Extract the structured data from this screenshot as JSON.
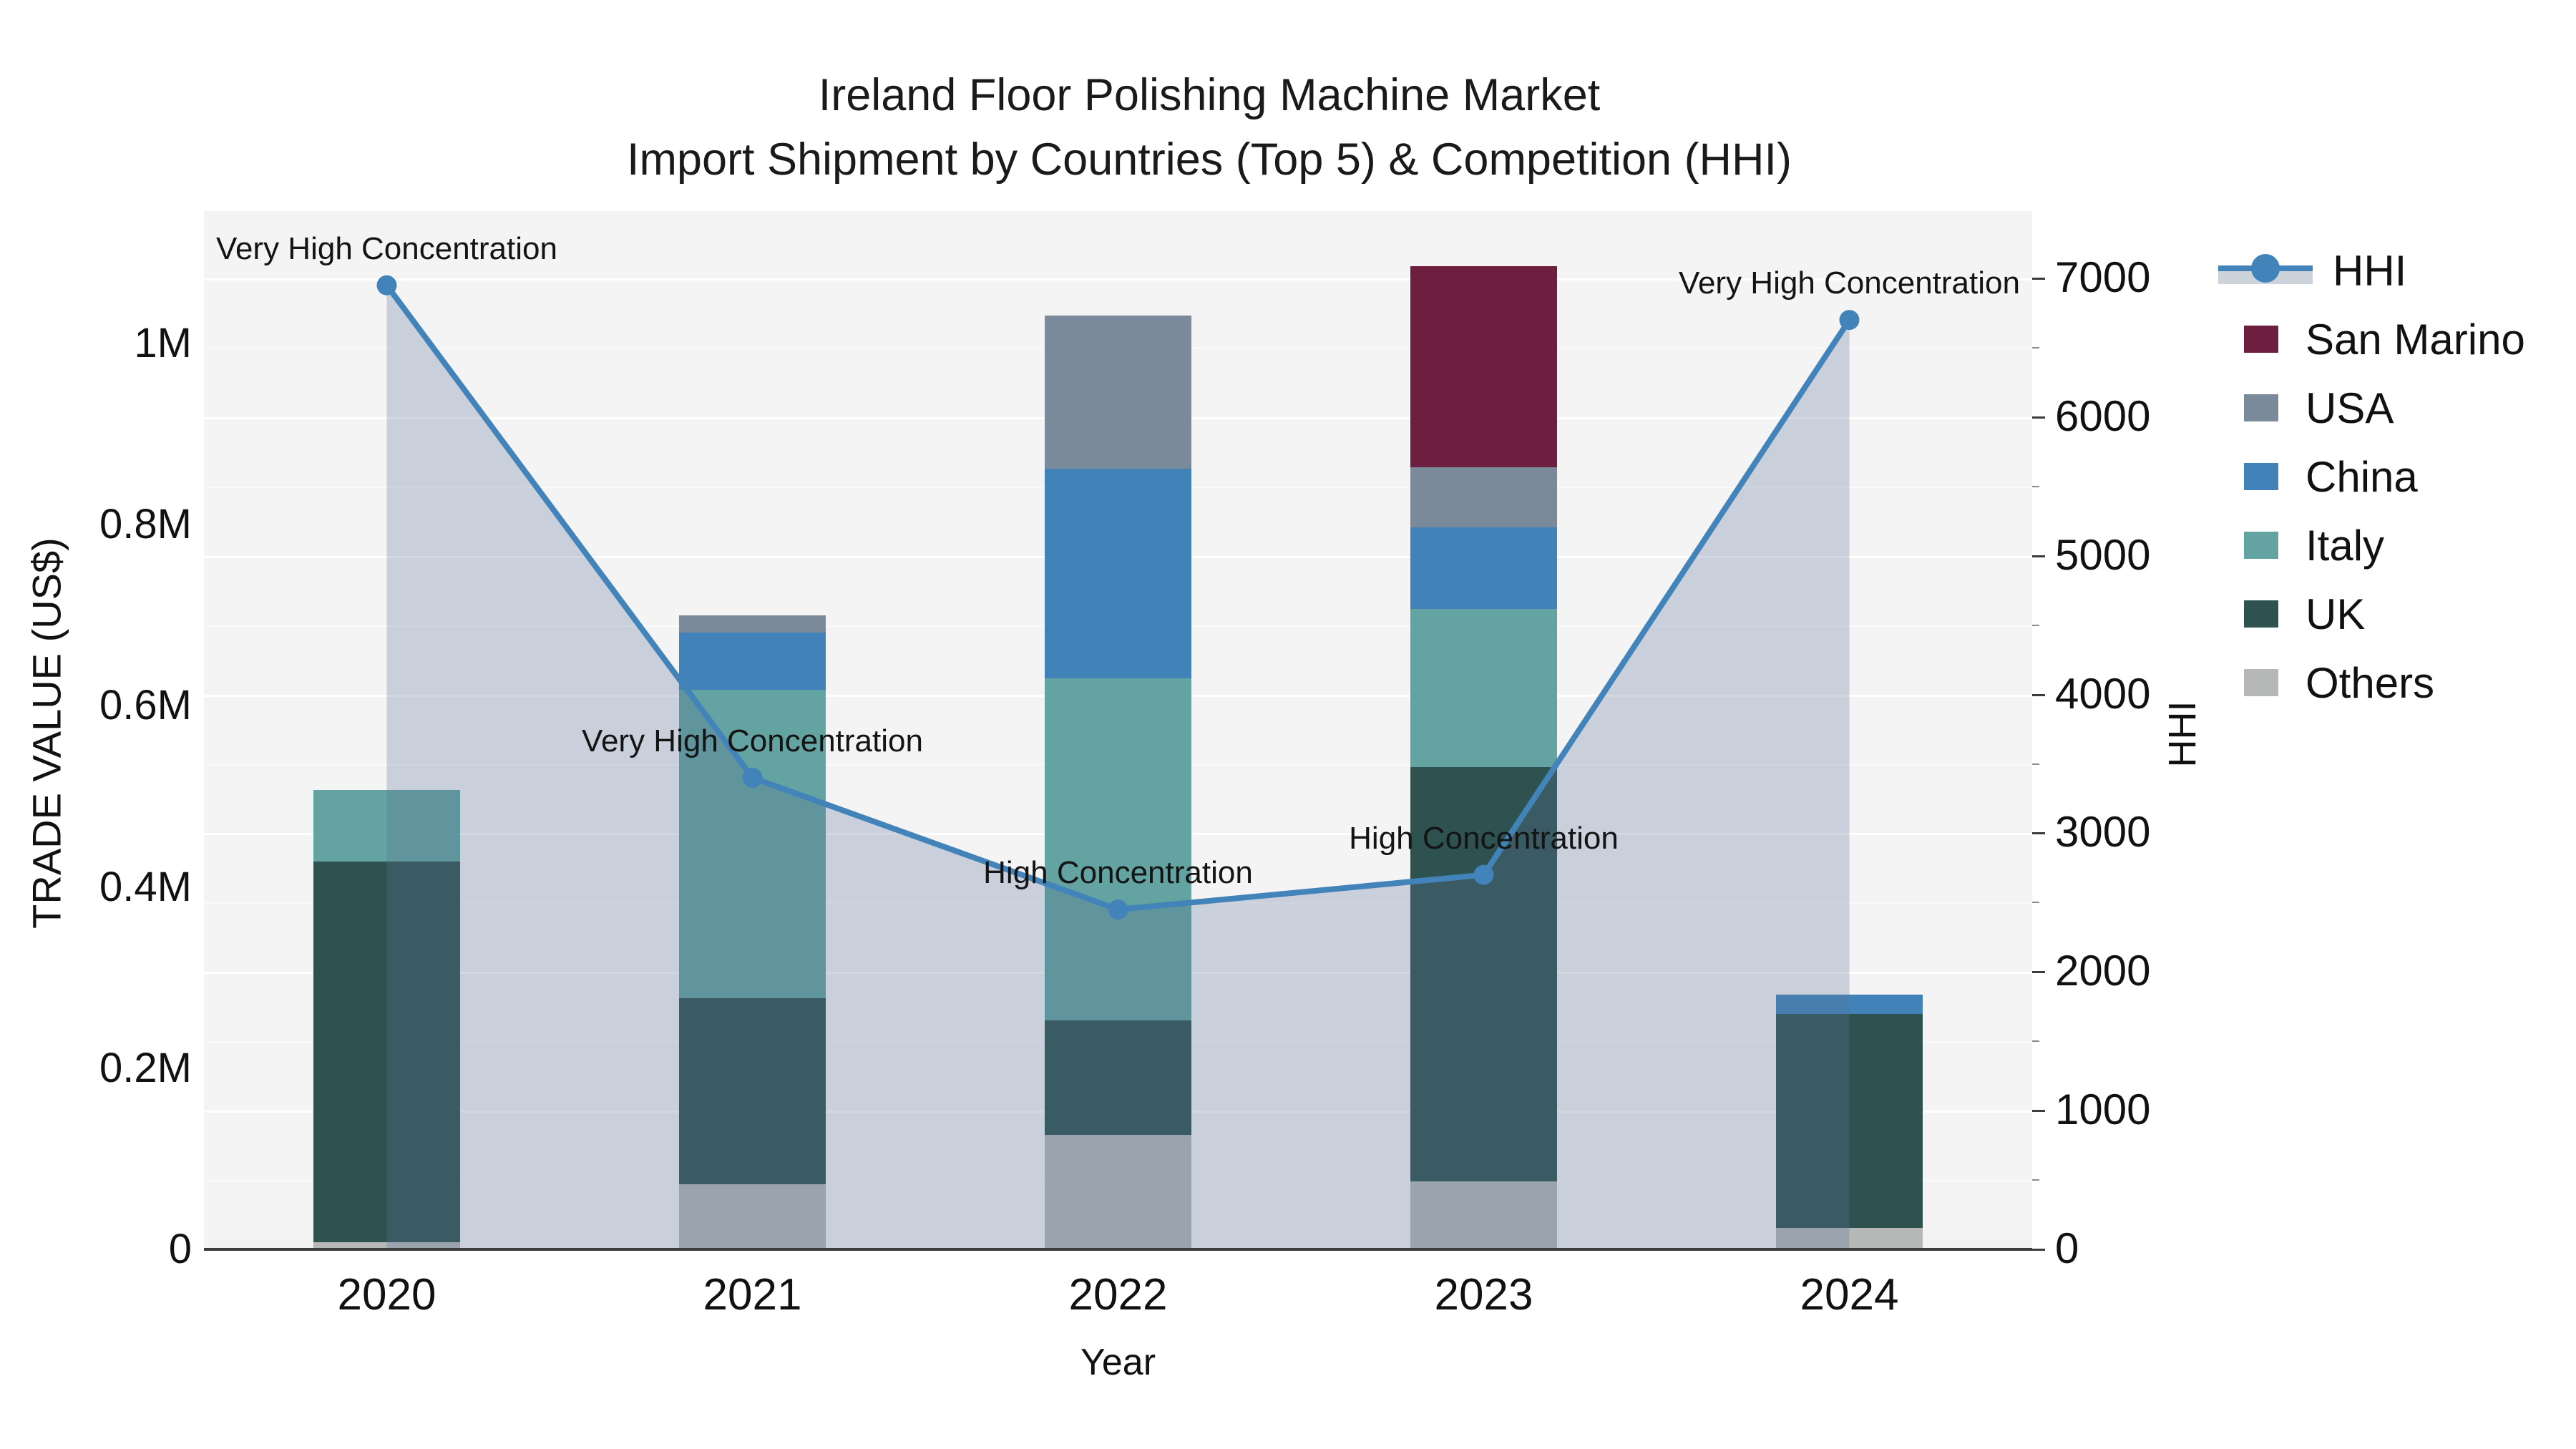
{
  "title": {
    "line1": "Ireland Floor Polishing Machine Market",
    "line2": "Import Shipment by Countries (Top 5) & Competition (HHI)"
  },
  "axes": {
    "x": {
      "title": "Year",
      "tick_labels": [
        "2020",
        "2021",
        "2022",
        "2023",
        "2024"
      ]
    },
    "left": {
      "title": "TRADE VALUE (US$)",
      "tick_labels": [
        "0",
        "0.2M",
        "0.4M",
        "0.6M",
        "0.8M",
        "1M"
      ],
      "tick_values_musd": [
        0,
        0.2,
        0.4,
        0.6,
        0.8,
        1.0
      ]
    },
    "right": {
      "title": "HHI",
      "tick_labels": [
        "0",
        "1000",
        "2000",
        "3000",
        "4000",
        "5000",
        "6000",
        "7000"
      ],
      "tick_values": [
        0,
        1000,
        2000,
        3000,
        4000,
        5000,
        6000,
        7000
      ],
      "minor_tick_step": 500
    }
  },
  "legend": {
    "items": [
      {
        "label": "HHI",
        "type": "line",
        "color": "#4283ba",
        "band_color": "#ccd3db"
      },
      {
        "label": "San Marino",
        "type": "swatch",
        "color": "#6e1e3e"
      },
      {
        "label": "USA",
        "type": "swatch",
        "color": "#7b8a9a"
      },
      {
        "label": "China",
        "type": "swatch",
        "color": "#4182b9"
      },
      {
        "label": "Italy",
        "type": "swatch",
        "color": "#63a3a1"
      },
      {
        "label": "UK",
        "type": "swatch",
        "color": "#2e524f"
      },
      {
        "label": "Others",
        "type": "swatch",
        "color": "#b5b8b7"
      }
    ]
  },
  "colors": {
    "plot_background": "#f4f4f5",
    "axis_line": "#3c3c3c",
    "hhi_line": "#4283ba",
    "hhi_area_fill": "rgba(90,115,150,0.28)",
    "gridline": "#ffffff"
  },
  "chart_data": {
    "type": "combo: stacked bars (left axis, trade value M US$) + area line (right axis, HHI)",
    "categories": [
      "2020",
      "2021",
      "2022",
      "2023",
      "2024"
    ],
    "unit_left": "million US$",
    "xlabel": "Year",
    "ylabel_left": "TRADE VALUE (US$)",
    "ylabel_right": "HHI",
    "left_ylim_musd": [
      0,
      1.146
    ],
    "right_ylim": [
      0,
      7485
    ],
    "grid": "faint white horizontal lines every 500 HHI",
    "legend_position": "right, outside plot",
    "stack_order_bottom_to_top": [
      "Others",
      "UK",
      "Italy",
      "China",
      "USA",
      "San Marino"
    ],
    "series": [
      {
        "name": "Others",
        "axis": "left",
        "color": "#b5b8b7",
        "values_musd": [
          0.008,
          0.072,
          0.126,
          0.075,
          0.024
        ]
      },
      {
        "name": "UK",
        "axis": "left",
        "color": "#2e524f",
        "values_musd": [
          0.42,
          0.205,
          0.127,
          0.457,
          0.236
        ]
      },
      {
        "name": "Italy",
        "axis": "left",
        "color": "#63a3a1",
        "values_musd": [
          0.079,
          0.341,
          0.377,
          0.175,
          0
        ]
      },
      {
        "name": "China",
        "axis": "left",
        "color": "#4182b9",
        "values_musd": [
          0,
          0.063,
          0.232,
          0.09,
          0.021
        ]
      },
      {
        "name": "USA",
        "axis": "left",
        "color": "#7b8a9a",
        "values_musd": [
          0,
          0.019,
          0.169,
          0.066,
          0
        ]
      },
      {
        "name": "San Marino",
        "axis": "left",
        "color": "#6e1e3e",
        "values_musd": [
          0,
          0,
          0,
          0.222,
          0
        ]
      }
    ],
    "bar_totals_musd": [
      0.507,
      0.7,
      1.031,
      1.085,
      0.281
    ],
    "hhi_series": {
      "name": "HHI",
      "axis": "right",
      "style": "line with circular markers and shaded area to zero",
      "values": [
        6950,
        3400,
        2450,
        2700,
        6700
      ]
    },
    "annotations": [
      {
        "category": "2020",
        "text": "Very High Concentration"
      },
      {
        "category": "2021",
        "text": "Very High Concentration"
      },
      {
        "category": "2022",
        "text": "High Concentration"
      },
      {
        "category": "2023",
        "text": "High Concentration"
      },
      {
        "category": "2024",
        "text": "Very High Concentration"
      }
    ]
  }
}
